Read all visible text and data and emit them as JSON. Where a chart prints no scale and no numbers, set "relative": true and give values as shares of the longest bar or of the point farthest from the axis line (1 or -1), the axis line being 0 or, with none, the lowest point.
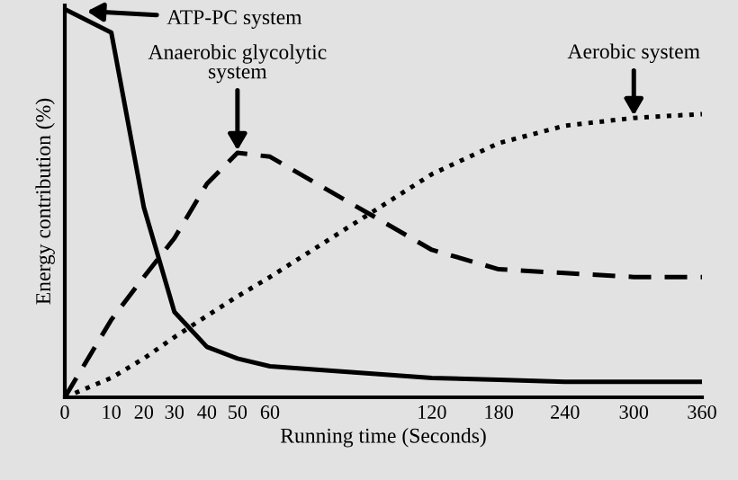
{
  "chart_data": {
    "type": "line",
    "relative": true,
    "xlabel": "Running time (Seconds)",
    "ylabel": "Energy contribution (%)",
    "categories": [
      "0",
      "10",
      "20",
      "30",
      "40",
      "50",
      "60",
      "120",
      "180",
      "240",
      "300",
      "360"
    ],
    "grid": false,
    "legend": false,
    "marker": "none",
    "series": [
      {
        "color": "#000000",
        "line_style": "solid",
        "values": [
          1,
          0.94,
          0.49,
          0.22,
          0.13,
          0.1,
          0.08,
          0.05,
          0.045,
          0.04,
          0.04,
          0.04
        ]
      },
      {
        "color": "#000000",
        "line_style": "dashed",
        "values": [
          0,
          0.2,
          0.31,
          0.41,
          0.55,
          0.63,
          0.62,
          0.38,
          0.33,
          0.32,
          0.31,
          0.31
        ]
      },
      {
        "color": "#000000",
        "line_style": "dotted",
        "values": [
          0,
          0.05,
          0.1,
          0.155,
          0.21,
          0.26,
          0.31,
          0.575,
          0.655,
          0.7,
          0.72,
          0.73
        ]
      }
    ],
    "annotations": [
      "ATP-PC system",
      {
        "text": "Anaerobic glycolytic\nsystem",
        "x": "50",
        "y": 0.63
      },
      {
        "text": "Aerobic system",
        "x": "300",
        "y": 0.72
      }
    ]
  }
}
